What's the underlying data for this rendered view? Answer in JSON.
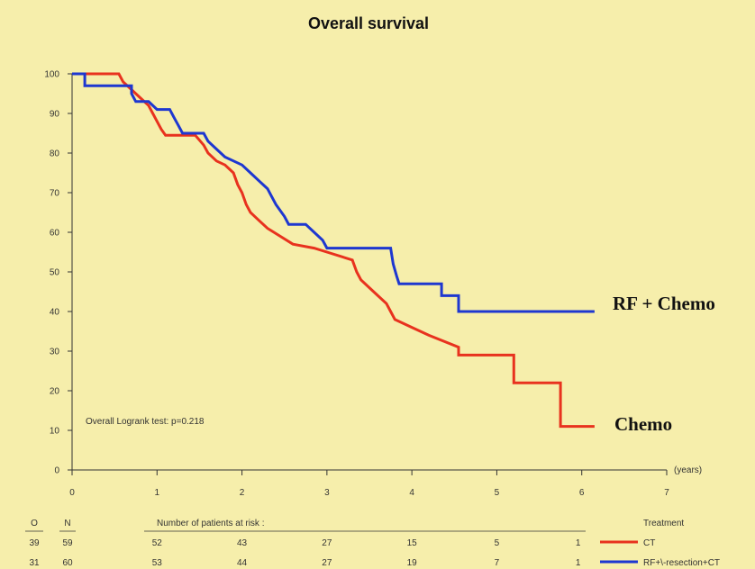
{
  "chart_data": {
    "type": "line",
    "title": "Overall survival",
    "xlabel": "(years)",
    "ylabel": "",
    "xlim": [
      0,
      7
    ],
    "ylim": [
      0,
      100
    ],
    "xticks": [
      "0",
      "1",
      "2",
      "3",
      "4",
      "5",
      "6",
      "7"
    ],
    "yticks": [
      "0",
      "10",
      "20",
      "30",
      "40",
      "50",
      "60",
      "70",
      "80",
      "90",
      "100"
    ],
    "annotation": "Overall Logrank test: p=0.218",
    "series": [
      {
        "name": "Chemo",
        "color": "#e8321e",
        "points": [
          [
            0,
            100
          ],
          [
            0.55,
            100
          ],
          [
            0.6,
            98
          ],
          [
            0.7,
            96
          ],
          [
            0.8,
            94
          ],
          [
            0.9,
            92
          ],
          [
            0.95,
            90
          ],
          [
            1.0,
            88
          ],
          [
            1.05,
            86
          ],
          [
            1.1,
            84.5
          ],
          [
            1.3,
            84.5
          ],
          [
            1.45,
            84.5
          ],
          [
            1.55,
            82
          ],
          [
            1.6,
            80
          ],
          [
            1.7,
            78
          ],
          [
            1.8,
            77
          ],
          [
            1.9,
            75
          ],
          [
            1.95,
            72
          ],
          [
            2.0,
            70
          ],
          [
            2.05,
            67
          ],
          [
            2.1,
            65
          ],
          [
            2.2,
            63
          ],
          [
            2.3,
            61
          ],
          [
            2.45,
            59
          ],
          [
            2.6,
            57
          ],
          [
            2.85,
            56
          ],
          [
            3.0,
            55
          ],
          [
            3.3,
            53
          ],
          [
            3.35,
            50
          ],
          [
            3.4,
            48
          ],
          [
            3.5,
            46
          ],
          [
            3.6,
            44
          ],
          [
            3.7,
            42
          ],
          [
            3.75,
            40
          ],
          [
            3.8,
            38
          ],
          [
            4.0,
            36
          ],
          [
            4.2,
            34
          ],
          [
            4.55,
            31
          ],
          [
            4.55,
            29
          ],
          [
            5.2,
            29
          ],
          [
            5.2,
            22
          ],
          [
            5.75,
            22
          ],
          [
            5.75,
            11
          ],
          [
            6.15,
            11
          ]
        ]
      },
      {
        "name": "RF + Chemo",
        "color": "#1e37d0",
        "points": [
          [
            0,
            100
          ],
          [
            0.15,
            100
          ],
          [
            0.15,
            97
          ],
          [
            0.7,
            97
          ],
          [
            0.7,
            95
          ],
          [
            0.75,
            93
          ],
          [
            0.9,
            93
          ],
          [
            1.0,
            91
          ],
          [
            1.15,
            91
          ],
          [
            1.2,
            89
          ],
          [
            1.25,
            87
          ],
          [
            1.3,
            85
          ],
          [
            1.55,
            85
          ],
          [
            1.6,
            83
          ],
          [
            1.7,
            81
          ],
          [
            1.8,
            79
          ],
          [
            2.0,
            77
          ],
          [
            2.1,
            75
          ],
          [
            2.2,
            73
          ],
          [
            2.3,
            71
          ],
          [
            2.35,
            69
          ],
          [
            2.4,
            67
          ],
          [
            2.5,
            64
          ],
          [
            2.55,
            62
          ],
          [
            2.75,
            62
          ],
          [
            2.85,
            60
          ],
          [
            2.95,
            58
          ],
          [
            3.0,
            56
          ],
          [
            3.75,
            56
          ],
          [
            3.78,
            52
          ],
          [
            3.82,
            49
          ],
          [
            3.85,
            47
          ],
          [
            4.35,
            47
          ],
          [
            4.35,
            44
          ],
          [
            4.55,
            44
          ],
          [
            4.55,
            40
          ],
          [
            6.15,
            40
          ]
        ]
      }
    ],
    "series_labels": [
      "RF + Chemo",
      "Chemo"
    ],
    "risk_table": {
      "col_o": "O",
      "col_n": "N",
      "heading": "Number of patients at risk :",
      "treatment_heading": "Treatment",
      "rows": [
        {
          "o": "39",
          "n": "59",
          "counts": [
            "52",
            "43",
            "27",
            "15",
            "5",
            "1"
          ],
          "treatment": "CT",
          "color": "#e8321e"
        },
        {
          "o": "31",
          "n": "60",
          "counts": [
            "53",
            "44",
            "27",
            "19",
            "7",
            "1"
          ],
          "treatment": "RF+\\-resection+CT",
          "color": "#1e37d0"
        }
      ]
    }
  }
}
